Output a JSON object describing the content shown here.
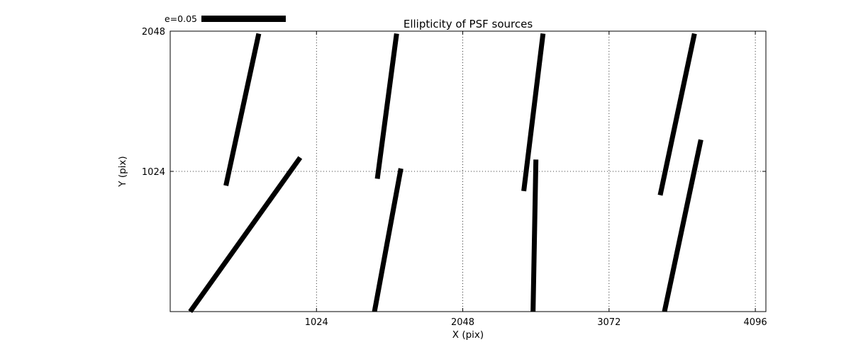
{
  "figure": {
    "background": "#ffffff"
  },
  "chart_data": {
    "type": "line",
    "subtype": "ellipticity-whisker-plot",
    "title": "Ellipticity of PSF sources",
    "xlabel": "X (pix)",
    "ylabel": "Y (pix)",
    "xlim": [
      0,
      4170
    ],
    "ylim": [
      0,
      2048
    ],
    "xticks": [
      1024,
      2048,
      3072,
      4096
    ],
    "yticks": [
      1024,
      2048
    ],
    "grid": true,
    "grid_style": "dotted",
    "legend": {
      "label": "e=0.05",
      "position": "outside-top-left"
    },
    "line_color": "#000000",
    "line_width": 7,
    "segments": [
      {
        "x1": 620,
        "y1": 2030,
        "x2": 390,
        "y2": 920
      },
      {
        "x1": 1585,
        "y1": 2030,
        "x2": 1450,
        "y2": 970
      },
      {
        "x1": 2610,
        "y1": 2030,
        "x2": 2475,
        "y2": 880
      },
      {
        "x1": 3670,
        "y1": 2030,
        "x2": 3430,
        "y2": 850
      },
      {
        "x1": 910,
        "y1": 1125,
        "x2": 140,
        "y2": 0
      },
      {
        "x1": 1615,
        "y1": 1045,
        "x2": 1430,
        "y2": 0
      },
      {
        "x1": 2560,
        "y1": 1110,
        "x2": 2540,
        "y2": 0
      },
      {
        "x1": 3715,
        "y1": 1255,
        "x2": 3460,
        "y2": 0
      }
    ]
  }
}
